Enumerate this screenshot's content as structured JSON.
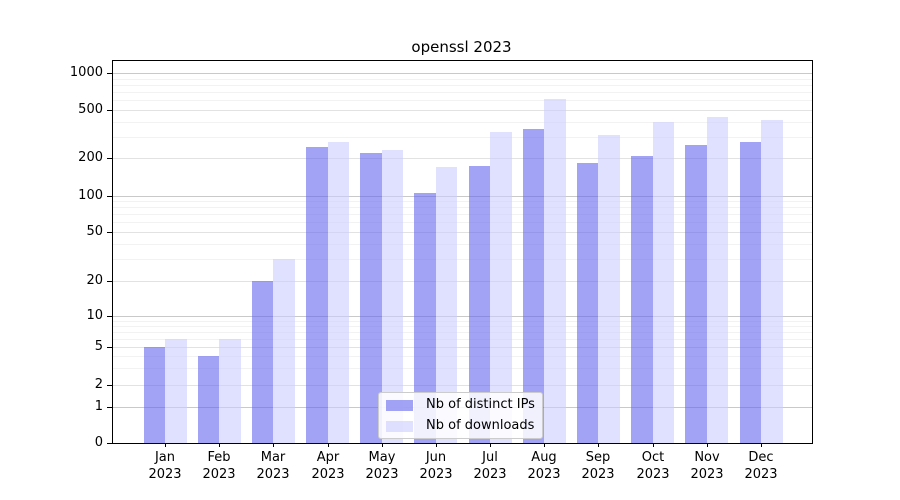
{
  "title": "openssl 2023",
  "chart_data": {
    "type": "bar",
    "title": "openssl 2023",
    "categories": [
      "Jan",
      "Feb",
      "Mar",
      "Apr",
      "May",
      "Jun",
      "Jul",
      "Aug",
      "Sep",
      "Oct",
      "Nov",
      "Dec"
    ],
    "category_year": "2023",
    "series": [
      {
        "name": "Nb of distinct IPs",
        "color": "#6666ee",
        "alpha": 0.6,
        "values": [
          5,
          4,
          20,
          250,
          220,
          105,
          175,
          350,
          185,
          210,
          255,
          275
        ]
      },
      {
        "name": "Nb of downloads",
        "color": "#ccccff",
        "alpha": 0.6,
        "values": [
          6,
          6,
          30,
          270,
          235,
          170,
          330,
          620,
          310,
          400,
          435,
          410
        ]
      }
    ],
    "y_axis": {
      "scale": "symlog",
      "ticks": [
        1000,
        500,
        200,
        100,
        50,
        20,
        10,
        5,
        2,
        1,
        0
      ]
    },
    "x_axis": {
      "label": ""
    },
    "grid": true,
    "legend_position": "lower center",
    "legend_entries": [
      "Nb of distinct IPs",
      "Nb of downloads"
    ]
  },
  "colors": {
    "bar_dark": "#6666ee",
    "bar_light": "#ccccff",
    "spine": "#000000",
    "grid_major": "#c9c9c9",
    "grid_mid": "#e2e2e2",
    "grid_minor": "#f2f2f2",
    "background": "#ffffff",
    "text": "#000000",
    "legend_border": "#cccccc"
  }
}
